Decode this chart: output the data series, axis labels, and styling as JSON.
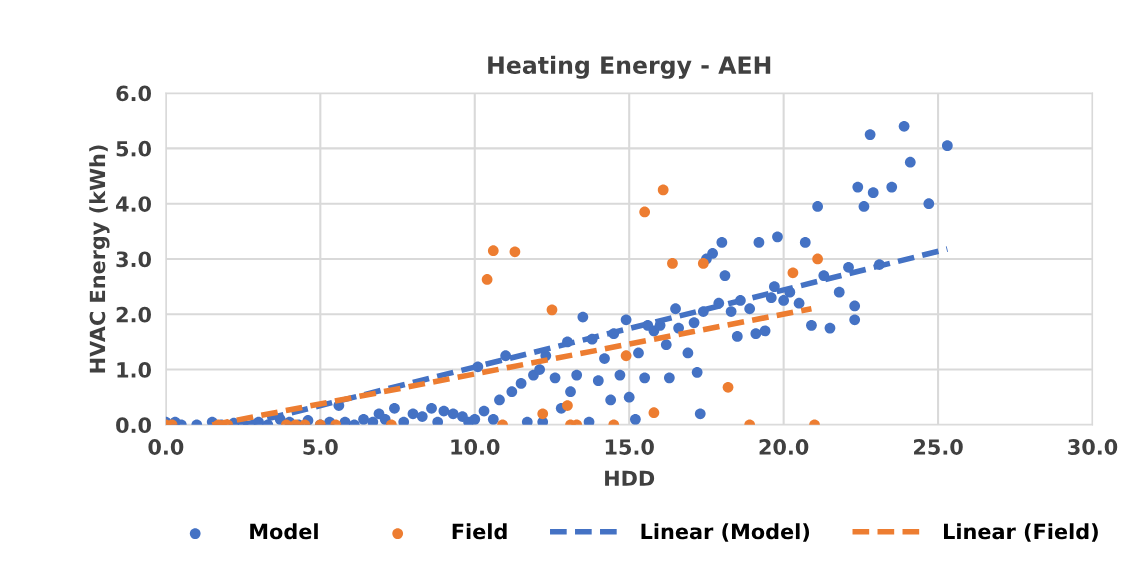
{
  "chart_data": {
    "type": "scatter",
    "title": "Heating Energy - AEH",
    "xlabel": "HDD",
    "ylabel": "HVAC Energy (kWh)",
    "xlim": [
      0,
      30
    ],
    "ylim": [
      0,
      6
    ],
    "xticks": [
      {
        "value": 0,
        "label": "0.0"
      },
      {
        "value": 5,
        "label": "5.0"
      },
      {
        "value": 10,
        "label": "10.0"
      },
      {
        "value": 15,
        "label": "15.0"
      },
      {
        "value": 20,
        "label": "20.0"
      },
      {
        "value": 25,
        "label": "25.0"
      },
      {
        "value": 30,
        "label": "30.0"
      }
    ],
    "yticks": [
      {
        "value": 0,
        "label": "0.0"
      },
      {
        "value": 1,
        "label": "1.0"
      },
      {
        "value": 2,
        "label": "2.0"
      },
      {
        "value": 3,
        "label": "3.0"
      },
      {
        "value": 4,
        "label": "4.0"
      },
      {
        "value": 5,
        "label": "5.0"
      },
      {
        "value": 6,
        "label": "6.0"
      }
    ],
    "grid": true,
    "legend": "bottom",
    "marker": "circle",
    "series": [
      {
        "name": "Model",
        "color": "#4472c4",
        "x": [
          0,
          0.3,
          0.5,
          1,
          1.5,
          1.8,
          2.2,
          2.5,
          3,
          3.3,
          3.7,
          4,
          4.3,
          4.6,
          5,
          5.3,
          5.6,
          5.8,
          6.1,
          6.4,
          6.7,
          6.9,
          7.1,
          7.4,
          7.7,
          8,
          8.3,
          8.6,
          8.8,
          9,
          9.3,
          9.6,
          9.8,
          10,
          10.1,
          10.3,
          10.6,
          10.8,
          11,
          11.2,
          11.5,
          11.7,
          11.9,
          12.1,
          12.2,
          12.3,
          12.6,
          12.8,
          13,
          13.1,
          13.3,
          13.5,
          13.7,
          13.8,
          14,
          14.2,
          14.4,
          14.5,
          14.7,
          14.9,
          15,
          15.2,
          15.3,
          15.5,
          15.6,
          15.8,
          16,
          16.2,
          16.3,
          16.5,
          16.6,
          16.9,
          17.1,
          17.2,
          17.3,
          17.4,
          17.5,
          17.7,
          17.9,
          18,
          18.1,
          18.3,
          18.5,
          18.6,
          18.9,
          19.1,
          19.2,
          19.4,
          19.6,
          19.7,
          19.8,
          20,
          20.2,
          20.5,
          20.7,
          20.9,
          21.1,
          21.3,
          21.5,
          21.8,
          22.1,
          22.3,
          22.3,
          22.4,
          22.6,
          22.8,
          22.9,
          23.1,
          23.5,
          23.9,
          24.1,
          24.7,
          25.3
        ],
        "values": [
          0.05,
          0.05,
          0,
          0,
          0.05,
          0,
          0.03,
          0,
          0.05,
          0,
          0.1,
          0.05,
          0,
          0.08,
          0,
          0.05,
          0.35,
          0.05,
          0,
          0.1,
          0.05,
          0.2,
          0.1,
          0.3,
          0.05,
          0.2,
          0.15,
          0.3,
          0.05,
          0.25,
          0.2,
          0.15,
          0.05,
          0.1,
          1.05,
          0.25,
          0.1,
          0.45,
          1.25,
          0.6,
          0.75,
          0.05,
          0.9,
          1.0,
          0.05,
          1.25,
          0.85,
          0.3,
          1.5,
          0.6,
          0.9,
          1.95,
          0.05,
          1.55,
          0.8,
          1.2,
          0.45,
          1.65,
          0.9,
          1.9,
          0.5,
          0.1,
          1.3,
          0.85,
          1.8,
          1.7,
          1.8,
          1.45,
          0.85,
          2.1,
          1.75,
          1.3,
          1.85,
          0.95,
          0.2,
          2.05,
          3.0,
          3.1,
          2.2,
          3.3,
          2.7,
          2.05,
          1.6,
          2.25,
          2.1,
          1.65,
          3.3,
          1.7,
          2.3,
          2.5,
          3.4,
          2.25,
          2.4,
          2.2,
          3.3,
          1.8,
          3.95,
          2.7,
          1.75,
          2.4,
          2.85,
          1.9,
          2.15,
          4.3,
          3.95,
          5.25,
          4.2,
          2.9,
          4.3,
          5.4,
          4.75,
          4.0,
          5.05
        ]
      },
      {
        "name": "Field",
        "color": "#ed7d31",
        "x": [
          0,
          0.2,
          1.7,
          2,
          3.9,
          4.2,
          4.5,
          5,
          5.5,
          7.3,
          10.4,
          10.6,
          11.3,
          12.5,
          10.9,
          12.2,
          13,
          13.1,
          13.3,
          14.5,
          14.9,
          15.5,
          15.8,
          16.1,
          16.4,
          17.4,
          18.2,
          18.9,
          20.3,
          21.1,
          21.0
        ],
        "values": [
          0,
          0,
          0,
          0,
          0,
          0,
          0,
          0,
          0,
          0,
          2.63,
          3.15,
          3.13,
          2.08,
          0,
          0.2,
          0.35,
          0,
          0,
          0,
          1.25,
          3.85,
          0.22,
          4.25,
          2.92,
          2.92,
          0.68,
          0,
          2.75,
          3.0,
          0
        ]
      },
      {
        "name": "Linear (Model)",
        "color": "#4472c4",
        "type": "line",
        "line_style": "dashed",
        "marker": "none",
        "x": [
          2.5,
          25.3
        ],
        "values": [
          0,
          3.18
        ]
      },
      {
        "name": "Linear (Field)",
        "color": "#ed7d31",
        "type": "line",
        "line_style": "dashed",
        "marker": "none",
        "x": [
          1.5,
          20.9
        ],
        "values": [
          0,
          2.1
        ]
      }
    ]
  }
}
